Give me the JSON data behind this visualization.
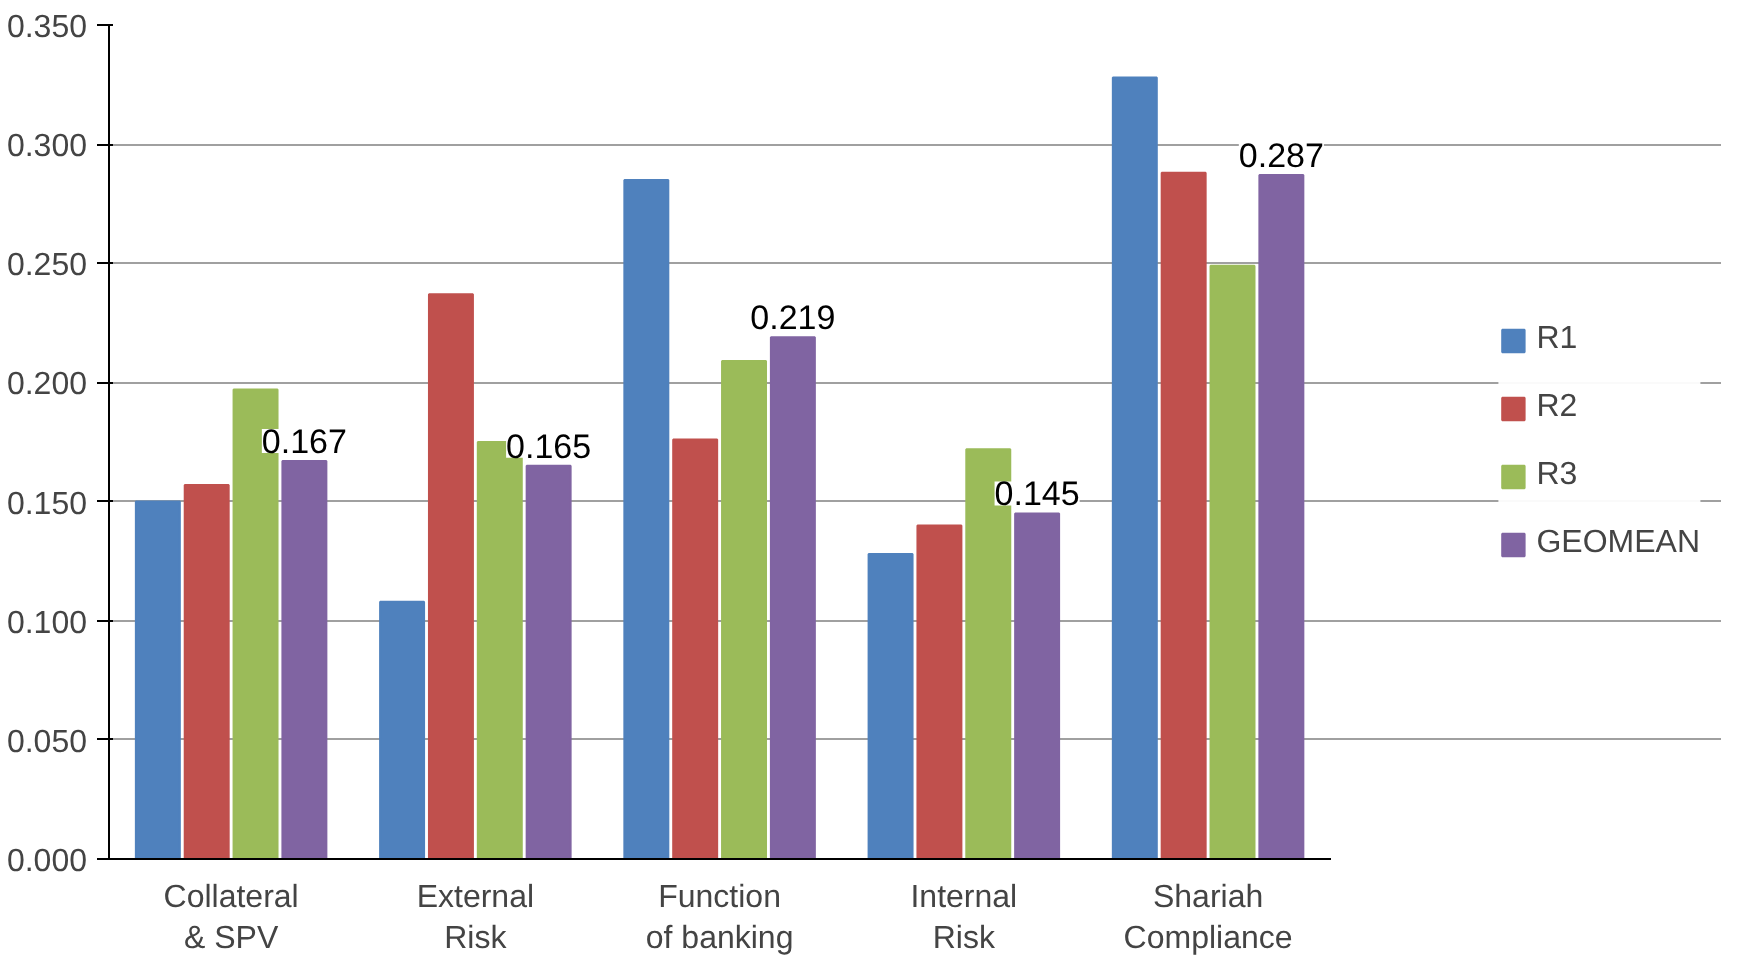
{
  "chart_data": {
    "type": "bar",
    "categories": [
      "Collateral & SPV",
      "External Risk",
      "Function of banking",
      "Internal Risk",
      "Shariah Compliance"
    ],
    "series": [
      {
        "name": "R1",
        "color": "#4f81bd",
        "values": [
          0.15,
          0.108,
          0.285,
          0.128,
          0.328
        ]
      },
      {
        "name": "R2",
        "color": "#c0504d",
        "values": [
          0.157,
          0.237,
          0.176,
          0.14,
          0.288
        ]
      },
      {
        "name": "R3",
        "color": "#9bbb59",
        "values": [
          0.197,
          0.175,
          0.209,
          0.172,
          0.249
        ]
      },
      {
        "name": "GEOMEAN",
        "color": "#8064a2",
        "values": [
          0.167,
          0.165,
          0.219,
          0.145,
          0.287
        ],
        "value_labels": [
          "0.167",
          "0.165",
          "0.219",
          "0.145",
          "0.287"
        ]
      }
    ],
    "ylim": [
      0,
      0.35
    ],
    "yticks": [
      {
        "value": 0,
        "label": "0.000"
      },
      {
        "value": 0.05,
        "label": "0.050"
      },
      {
        "value": 0.1,
        "label": "0.100"
      },
      {
        "value": 0.15,
        "label": "0.150"
      },
      {
        "value": 0.2,
        "label": "0.200"
      },
      {
        "value": 0.25,
        "label": "0.250"
      },
      {
        "value": 0.3,
        "label": "0.300"
      },
      {
        "value": 0.35,
        "label": "0.350"
      }
    ],
    "grid": "y",
    "legend": "right"
  }
}
